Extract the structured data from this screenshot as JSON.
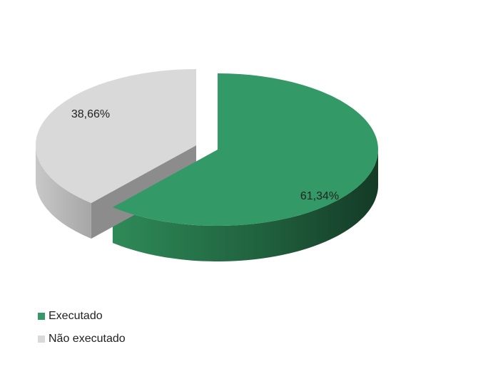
{
  "chart_data": {
    "type": "pie3d",
    "categories": [
      "Executado",
      "Não executado"
    ],
    "values": [
      61.34,
      38.66
    ],
    "value_labels": [
      "61,34%",
      "38,66%"
    ],
    "colors": [
      "#339966",
      "#d9d9d9"
    ],
    "legend": "bottom-left"
  }
}
